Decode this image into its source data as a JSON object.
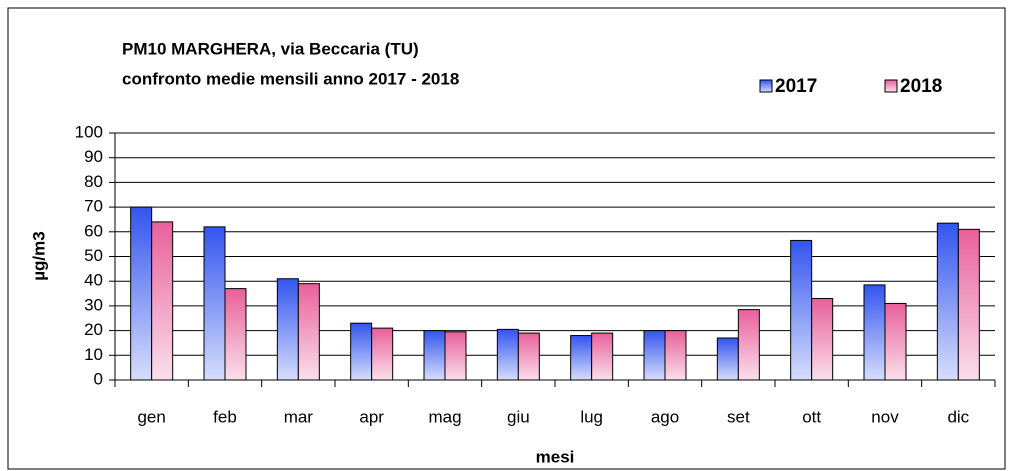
{
  "chart_data": {
    "type": "bar",
    "title": "PM10   MARGHERA, via Beccaria (TU)",
    "subtitle": "confronto medie mensili anno 2017 - 2018",
    "x_label": "mesi",
    "y_label": "µg/m3",
    "categories": [
      "gen",
      "feb",
      "mar",
      "apr",
      "mag",
      "giu",
      "lug",
      "ago",
      "set",
      "ott",
      "nov",
      "dic"
    ],
    "series": [
      {
        "name": "2017",
        "color": "#3355ee",
        "values": [
          70,
          62,
          41,
          23,
          20,
          20.5,
          18,
          20,
          17,
          56.5,
          38.5,
          63.5
        ]
      },
      {
        "name": "2018",
        "color": "#e8609a",
        "values": [
          64,
          37,
          39,
          21,
          19.5,
          19,
          19,
          20,
          28.5,
          33,
          31,
          61
        ]
      }
    ],
    "ylim": [
      0,
      100
    ],
    "yticks": [
      0,
      10,
      20,
      30,
      40,
      50,
      60,
      70,
      80,
      90,
      100
    ],
    "grid": true
  }
}
